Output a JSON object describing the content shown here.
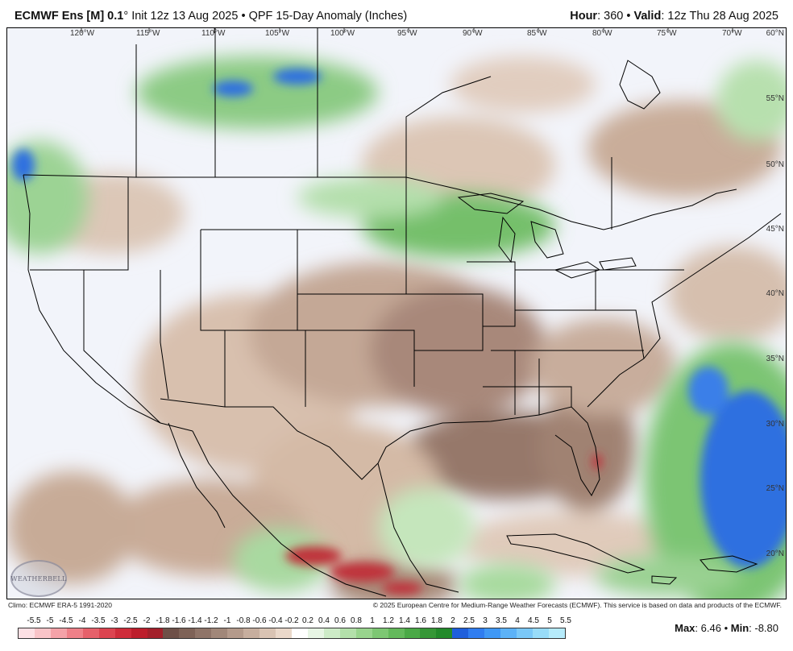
{
  "header": {
    "model": "ECMWF Ens [M] 0.1",
    "degree": "°",
    "init": "Init 12z 13 Aug 2025",
    "sep": "•",
    "product": "QPF 15-Day Anomaly (Inches)",
    "hour_label": "Hour",
    "hour_value": ": 360",
    "valid_label": "Valid",
    "valid_value": ": 12z Thu 28 Aug 2025"
  },
  "map": {
    "longitudes": [
      "120°W",
      "115°W",
      "110°W",
      "105°W",
      "100°W",
      "95°W",
      "90°W",
      "85°W",
      "80°W",
      "75°W",
      "70°W"
    ],
    "latitudes": [
      "60°N",
      "55°N",
      "50°N",
      "45°N",
      "40°N",
      "35°N",
      "30°N",
      "25°N",
      "20°N"
    ],
    "logo_text": "WEATHERBELL"
  },
  "footer": {
    "climo": "Climo: ECMWF ERA-5 1991-2020",
    "copyright": "© 2025 European Centre for Medium-Range Weather Forecasts (ECMWF). This service is based on data and products of the ECMWF."
  },
  "legend": {
    "labels": [
      "-5.5",
      "-5",
      "-4.5",
      "-4",
      "-3.5",
      "-3",
      "-2.5",
      "-2",
      "-1.8",
      "-1.6",
      "-1.4",
      "-1.2",
      "-1",
      "-0.8",
      "-0.6",
      "-0.4",
      "-0.2",
      "0.2",
      "0.4",
      "0.6",
      "0.8",
      "1",
      "1.2",
      "1.4",
      "1.6",
      "1.8",
      "2",
      "2.5",
      "3",
      "3.5",
      "4",
      "4.5",
      "5",
      "5.5"
    ],
    "colors": [
      "#fde0e4",
      "#f9c4c8",
      "#f4a2a8",
      "#ee8088",
      "#e6606a",
      "#dc4450",
      "#cf2c3a",
      "#bd1e2c",
      "#a3202b",
      "#6e5048",
      "#7e6257",
      "#8f7468",
      "#a18779",
      "#b49a8b",
      "#c7ae9e",
      "#d9c3b3",
      "#ead8ca",
      "#ffffff",
      "#e7f5e4",
      "#cdebc7",
      "#b3e0aa",
      "#98d48d",
      "#7dc773",
      "#63b95b",
      "#4aa946",
      "#369737",
      "#238a2b",
      "#1e5fdc",
      "#2f7df0",
      "#3f98f5",
      "#5cb2f7",
      "#7ac8f8",
      "#98dcf9",
      "#b6ebfb"
    ]
  },
  "stats": {
    "max_label": "Max",
    "max_value": ": 6.46",
    "sep": "•",
    "min_label": "Min",
    "min_value": ": -8.80"
  }
}
